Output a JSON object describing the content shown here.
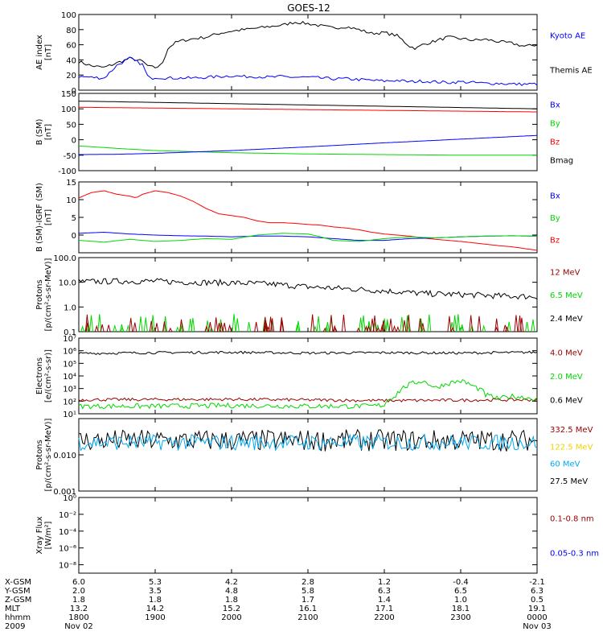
{
  "title": "GOES-12",
  "colors": {
    "black": "#000000",
    "blue": "#0000ff",
    "red": "#ff0000",
    "green": "#00d800",
    "darkred": "#990000",
    "cyan": "#00a8f0",
    "gold": "#f0d000"
  },
  "chart_data": [
    {
      "type": "line",
      "id": "ae",
      "ylabel": [
        "AE index",
        "[nT]"
      ],
      "ylim": [
        0,
        100
      ],
      "yscale": "linear",
      "ticks": [
        "0",
        "20",
        "40",
        "60",
        "80",
        "100"
      ],
      "legend": [
        {
          "name": "Kyoto AE",
          "color": "blue"
        },
        {
          "name": "Themis AE",
          "color": "black"
        }
      ],
      "series": [
        {
          "name": "Themis AE",
          "color": "black",
          "x": [
            1800,
            1810,
            1820,
            1830,
            1840,
            1850,
            1855,
            1900,
            1905,
            1910,
            1915,
            1920,
            1930,
            1940,
            1950,
            2000,
            2010,
            2020,
            2030,
            2040,
            2050,
            2100,
            2110,
            2120,
            2130,
            2140,
            2150,
            2200,
            2210,
            2220,
            2225,
            2230,
            2240,
            2250,
            2300,
            2310,
            2320,
            2330,
            2340,
            2350,
            2400
          ],
          "y": [
            38,
            32,
            30,
            36,
            42,
            38,
            31,
            30,
            33,
            55,
            62,
            65,
            68,
            70,
            75,
            78,
            80,
            82,
            84,
            86,
            90,
            88,
            85,
            82,
            84,
            80,
            75,
            76,
            72,
            58,
            55,
            60,
            65,
            70,
            68,
            66,
            67,
            64,
            62,
            58,
            60
          ]
        },
        {
          "name": "Kyoto AE",
          "color": "blue",
          "x": [
            1800,
            1810,
            1820,
            1830,
            1840,
            1850,
            1855,
            1900,
            1910,
            1920,
            1930,
            1940,
            1950,
            2000,
            2010,
            2020,
            2030,
            2040,
            2050,
            2100,
            2110,
            2120,
            2130,
            2140,
            2150,
            2200,
            2210,
            2220,
            2230,
            2240,
            2250,
            2300,
            2310,
            2320,
            2330,
            2340,
            2350,
            2400
          ],
          "y": [
            18,
            17,
            16,
            33,
            42,
            34,
            15,
            17,
            16,
            16,
            16,
            17,
            18,
            19,
            18,
            18,
            17,
            18,
            17,
            17,
            16,
            15,
            15,
            14,
            13,
            12,
            13,
            11,
            12,
            11,
            10,
            11,
            10,
            9,
            9,
            8,
            8,
            8
          ]
        }
      ]
    },
    {
      "type": "line",
      "id": "bsm",
      "ylabel": [
        "B (SM)",
        "[nT]"
      ],
      "ylim": [
        -100,
        150
      ],
      "yscale": "linear",
      "ticks": [
        "-100",
        "-50",
        "0",
        "50",
        "100",
        "150"
      ],
      "legend": [
        {
          "name": "Bx",
          "color": "blue"
        },
        {
          "name": "By",
          "color": "green"
        },
        {
          "name": "Bz",
          "color": "red"
        },
        {
          "name": "Bmag",
          "color": "black"
        }
      ],
      "series": [
        {
          "name": "Bmag",
          "color": "black",
          "x": [
            1800,
            2400
          ],
          "y": [
            125,
            100
          ]
        },
        {
          "name": "Bz",
          "color": "red",
          "x": [
            1800,
            2400
          ],
          "y": [
            105,
            90
          ]
        },
        {
          "name": "By",
          "color": "green",
          "x": [
            1800,
            1830,
            1900,
            2000,
            2100,
            2200,
            2300,
            2400
          ],
          "y": [
            -20,
            -28,
            -35,
            -42,
            -46,
            -48,
            -50,
            -50
          ]
        },
        {
          "name": "Bx",
          "color": "blue",
          "x": [
            1800,
            1830,
            1900,
            2000,
            2100,
            2200,
            2300,
            2400
          ],
          "y": [
            -48,
            -47,
            -44,
            -35,
            -23,
            -10,
            2,
            14
          ]
        }
      ]
    },
    {
      "type": "line",
      "id": "digrf",
      "ylabel": [
        "B (SM)-IGRF (SM)",
        "[nT]"
      ],
      "ylim": [
        -5,
        15
      ],
      "yscale": "linear",
      "ticks": [
        "0",
        "5",
        "10",
        "15"
      ],
      "legend": [
        {
          "name": "Bx",
          "color": "blue"
        },
        {
          "name": "By",
          "color": "green"
        },
        {
          "name": "Bz",
          "color": "red"
        }
      ],
      "series": [
        {
          "name": "Bz",
          "color": "red",
          "x": [
            1800,
            1810,
            1820,
            1830,
            1840,
            1845,
            1850,
            1900,
            1910,
            1920,
            1930,
            1940,
            1950,
            2000,
            2010,
            2020,
            2030,
            2040,
            2050,
            2100,
            2110,
            2120,
            2130,
            2140,
            2150,
            2200,
            2210,
            2220,
            2230,
            2240,
            2250,
            2300,
            2310,
            2320,
            2330,
            2340,
            2350,
            2400
          ],
          "y": [
            10.5,
            12,
            12.5,
            11.5,
            11,
            10.5,
            11.5,
            12.5,
            12,
            11,
            9.5,
            7.5,
            6,
            5.5,
            5,
            4,
            3.5,
            3.5,
            3.3,
            3,
            2.8,
            2.3,
            2,
            1.5,
            0.8,
            0.3,
            0,
            -0.3,
            -0.8,
            -1.2,
            -1.5,
            -1.8,
            -2.2,
            -2.6,
            -3,
            -3.3,
            -3.8,
            -4.3
          ]
        },
        {
          "name": "Bx",
          "color": "blue",
          "x": [
            1800,
            1820,
            1840,
            1900,
            1920,
            1940,
            2000,
            2020,
            2040,
            2100,
            2120,
            2140,
            2200,
            2220,
            2240,
            2300,
            2320,
            2340,
            2400
          ],
          "y": [
            0.5,
            0.8,
            0.3,
            0,
            -0.2,
            -0.3,
            -0.5,
            -0.3,
            -0.3,
            -0.5,
            -1,
            -1.5,
            -1.5,
            -1,
            -0.8,
            -0.5,
            -0.3,
            -0.2,
            -0.3
          ]
        },
        {
          "name": "By",
          "color": "green",
          "x": [
            1800,
            1820,
            1840,
            1900,
            1920,
            1940,
            2000,
            2020,
            2040,
            2100,
            2110,
            2120,
            2140,
            2200,
            2220,
            2240,
            2300,
            2320,
            2340,
            2400
          ],
          "y": [
            -1.5,
            -2,
            -1.2,
            -1.8,
            -1.5,
            -1,
            -1.2,
            0,
            0.5,
            0.3,
            -0.5,
            -1.5,
            -1.8,
            -1,
            -0.5,
            -0.8,
            -0.5,
            -0.3,
            -0.2,
            -0.3
          ]
        }
      ]
    },
    {
      "type": "line",
      "id": "protons",
      "ylabel": [
        "Protons",
        "[p/(cm²-s-sr-MeV)]"
      ],
      "ylim": [
        0.1,
        100
      ],
      "yscale": "log",
      "ticks": [
        "0.1",
        "1.0",
        "10.0",
        "100.0"
      ],
      "legend": [
        {
          "name": "12 MeV",
          "color": "darkred"
        },
        {
          "name": "6.5 MeV",
          "color": "green"
        },
        {
          "name": "2.4 MeV",
          "color": "black"
        }
      ],
      "series": [
        {
          "name": "2.4 MeV",
          "color": "black",
          "x": [
            1800,
            1830,
            1900,
            1930,
            2000,
            2030,
            2100,
            2130,
            2200,
            2230,
            2300,
            2330,
            2400
          ],
          "y": [
            10.5,
            11,
            11,
            10,
            9.5,
            8.5,
            6.5,
            5.5,
            4.5,
            3.5,
            3.2,
            2.8,
            2.6
          ],
          "noise": 0.12
        },
        {
          "name": "6.5 MeV",
          "color": "green",
          "spikes": true,
          "x": [
            1800,
            2400
          ],
          "y": [
            0.1,
            0.1
          ]
        },
        {
          "name": "12 MeV",
          "color": "darkred",
          "spikes": true,
          "x": [
            1800,
            2400
          ],
          "y": [
            0.1,
            0.1
          ]
        }
      ]
    },
    {
      "type": "line",
      "id": "electrons",
      "ylabel": [
        "Electrons",
        "[e/(cm²-s-sr)]"
      ],
      "ylim": [
        10,
        10000000
      ],
      "yscale": "log",
      "ticks": [
        "10¹",
        "10²",
        "10³",
        "10⁴",
        "10⁵",
        "10⁶",
        "10⁷"
      ],
      "legend": [
        {
          "name": "4.0 MeV",
          "color": "darkred"
        },
        {
          "name": "2.0 MeV",
          "color": "green"
        },
        {
          "name": "0.6 MeV",
          "color": "black"
        }
      ],
      "series": [
        {
          "name": "0.6 MeV",
          "color": "black",
          "x": [
            1800,
            1900,
            2000,
            2100,
            2200,
            2300,
            2400
          ],
          "y": [
            600000,
            700000,
            750000,
            650000,
            700000,
            650000,
            750000
          ],
          "noise": 0.1
        },
        {
          "name": "4.0 MeV",
          "color": "darkred",
          "x": [
            1800,
            2000,
            2200,
            2400
          ],
          "y": [
            130,
            140,
            110,
            130
          ],
          "noise": 0.12
        },
        {
          "name": "2.0 MeV",
          "color": "green",
          "x": [
            1800,
            1900,
            2000,
            2100,
            2150,
            2200,
            2210,
            2220,
            2230,
            2240,
            2250,
            2300,
            2310,
            2320,
            2330,
            2340,
            2350,
            2400
          ],
          "y": [
            40,
            40,
            45,
            40,
            40,
            50,
            300,
            2000,
            4000,
            1000,
            2500,
            4000,
            1500,
            300,
            150,
            250,
            200,
            150
          ],
          "noise": 0.2
        }
      ]
    },
    {
      "type": "line",
      "id": "hiprotons",
      "ylabel": [
        "Protons",
        "[p/(cm²-s-sr-MeV)]"
      ],
      "ylim": [
        0.001,
        0.1
      ],
      "yscale": "log",
      "ticks": [
        "0.001",
        "0.010"
      ],
      "legend": [
        {
          "name": "332.5 MeV",
          "color": "darkred"
        },
        {
          "name": "122.5 MeV",
          "color": "gold"
        },
        {
          "name": "60 MeV",
          "color": "cyan"
        },
        {
          "name": "27.5 MeV",
          "color": "black"
        }
      ],
      "series": [
        {
          "name": "27.5 MeV",
          "color": "black",
          "x": [
            1800,
            2400
          ],
          "y": [
            0.025,
            0.025
          ],
          "noise": 0.3
        },
        {
          "name": "60 MeV",
          "color": "cyan",
          "x": [
            1800,
            2400
          ],
          "y": [
            0.022,
            0.022
          ],
          "noise": 0.22
        }
      ]
    },
    {
      "type": "line",
      "id": "xray",
      "ylabel": [
        "Xray Flux",
        "[W/m²]"
      ],
      "ylim": [
        1e-09,
        1
      ],
      "yscale": "log",
      "ticks": [
        "10⁻⁸",
        "10⁻⁶",
        "10⁻⁴",
        "10⁻²",
        "10⁰"
      ],
      "legend": [
        {
          "name": "0.1-0.8 nm",
          "color": "darkred"
        },
        {
          "name": "0.05-0.3 nm",
          "color": "blue"
        }
      ],
      "series": []
    }
  ],
  "x_axis": {
    "xlim": [
      1800,
      2400
    ],
    "ticks": [
      1800,
      1900,
      2000,
      2100,
      2200,
      2300,
      2400
    ],
    "rows": [
      {
        "label": "X-GSM",
        "values": [
          "6.0",
          "5.3",
          "4.2",
          "2.8",
          "1.2",
          "-0.4",
          "-2.1"
        ]
      },
      {
        "label": "Y-GSM",
        "values": [
          "2.0",
          "3.5",
          "4.8",
          "5.8",
          "6.3",
          "6.5",
          "6.3"
        ]
      },
      {
        "label": "Z-GSM",
        "values": [
          "1.8",
          "1.8",
          "1.8",
          "1.7",
          "1.4",
          "1.0",
          "0.5"
        ]
      },
      {
        "label": "MLT",
        "values": [
          "13.2",
          "14.2",
          "15.2",
          "16.1",
          "17.1",
          "18.1",
          "19.1"
        ]
      },
      {
        "label": "hhmm",
        "values": [
          "1800",
          "1900",
          "2000",
          "2100",
          "2200",
          "2300",
          "0000"
        ]
      },
      {
        "label": "2009",
        "values": [
          "Nov 02",
          "",
          "",
          "",
          "",
          "",
          "Nov 03"
        ]
      }
    ]
  }
}
